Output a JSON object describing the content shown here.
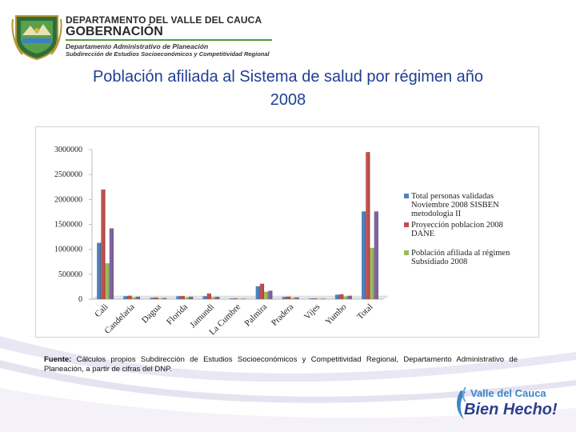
{
  "header": {
    "line1": "DEPARTAMENTO DEL VALLE DEL CAUCA",
    "line2": "GOBERNACIÓN",
    "line3": "Departamento Administrativo de Planeación",
    "line4": "Subdirección de Estudios Socioeconómicos y Competitividad Regional"
  },
  "title_line1": "Población afiliada al Sistema de salud por régimen año",
  "title_line2": "2008",
  "source": {
    "label": "Fuente:",
    "text": "Cálculos propios Subdirección de Estudios Socioeconómicos y Competitividad Regional, Departamento Administrativo de Planeación, a partir de cifras del DNP."
  },
  "brand": {
    "line1": "Valle del Cauca",
    "line2": "Bien Hecho!"
  },
  "colors": {
    "title": "#1f3f93",
    "series1": "#4f81bd",
    "series2": "#c0504d",
    "series3": "#9bbb59",
    "series4": "#8064a2"
  },
  "chart_data": {
    "type": "bar",
    "categories": [
      "Cali",
      "Candelaria",
      "Dagua",
      "Florida",
      "Jamundi",
      "La Cumbre",
      "Palmira",
      "Pradera",
      "Vijes",
      "Yumbo",
      "Total"
    ],
    "series": [
      {
        "name": "Total personas validadas Noviembre 2008 SISBEN metodologia II",
        "values": [
          1130000,
          60000,
          28000,
          60000,
          60000,
          15000,
          260000,
          45000,
          15000,
          90000,
          1760000
        ]
      },
      {
        "name": "Proyección poblacion 2008 DANE",
        "values": [
          2200000,
          70000,
          35000,
          65000,
          115000,
          18000,
          310000,
          52000,
          18000,
          100000,
          2950000
        ]
      },
      {
        "name": "Población afiliada al régimen Subsidiado 2008",
        "values": [
          720000,
          35000,
          18000,
          35000,
          40000,
          9000,
          150000,
          26000,
          9000,
          55000,
          1030000
        ]
      },
      {
        "name": "",
        "values": [
          1420000,
          50000,
          23000,
          50000,
          48000,
          11000,
          170000,
          36000,
          11000,
          70000,
          1760000
        ]
      }
    ],
    "yticks": [
      0,
      500000,
      1000000,
      1500000,
      2000000,
      2500000,
      3000000
    ],
    "ytick_labels": [
      "0",
      "500000",
      "1000000",
      "1500000",
      "2000000",
      "2500000",
      "3000000"
    ],
    "ylim": [
      0,
      3000000
    ],
    "legend_position": "right",
    "grid": false
  }
}
